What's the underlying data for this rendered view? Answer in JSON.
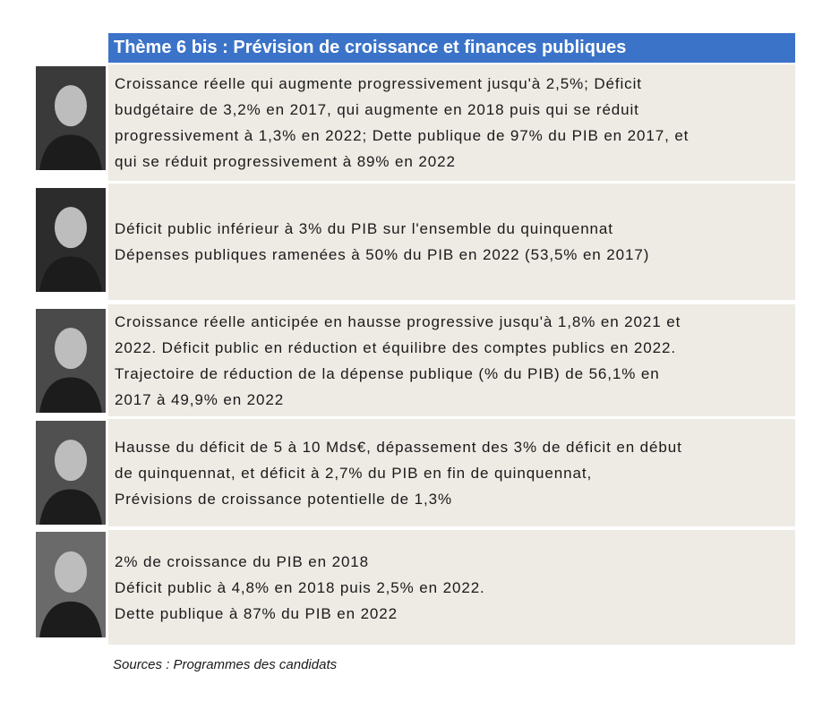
{
  "header": {
    "title": "Thème 6 bis : Prévision de croissance et finances publiques"
  },
  "rows": [
    {
      "lines": [
        "Croissance réelle qui augmente progressivement jusqu'à 2,5%; Déficit",
        "budgétaire de 3,2% en 2017, qui augmente en 2018 puis qui se réduit",
        "progressivement à 1,3% en 2022; Dette publique de 97% du PIB en 2017, et",
        "qui se réduit progressivement à 89% en 2022"
      ]
    },
    {
      "lines": [
        "Déficit public inférieur à 3% du PIB sur l'ensemble du quinquennat",
        "Dépenses publiques ramenées à 50% du PIB en 2022 (53,5% en 2017)"
      ]
    },
    {
      "lines": [
        "Croissance réelle anticipée en hausse progressive jusqu'à 1,8% en 2021 et",
        "2022. Déficit public en réduction et équilibre des comptes publics en 2022.",
        "Trajectoire de réduction de la dépense publique (% du PIB) de  56,1% en",
        "2017 à 49,9% en 2022"
      ]
    },
    {
      "lines": [
        "Hausse du déficit de 5 à 10 Mds€,  dépassement des 3% de déficit en début",
        "de quinquennat, et déficit à 2,7% du PIB en fin de quinquennat,",
        "Prévisions de croissance potentielle de 1,3%"
      ]
    },
    {
      "lines": [
        "2% de croissance du PIB en 2018",
        "Déficit public à 4,8% en 2018 puis 2,5% en 2022.",
        "Dette publique à 87% du PIB en 2022"
      ]
    }
  ],
  "footer": {
    "source": "Sources : Programmes des candidats"
  }
}
